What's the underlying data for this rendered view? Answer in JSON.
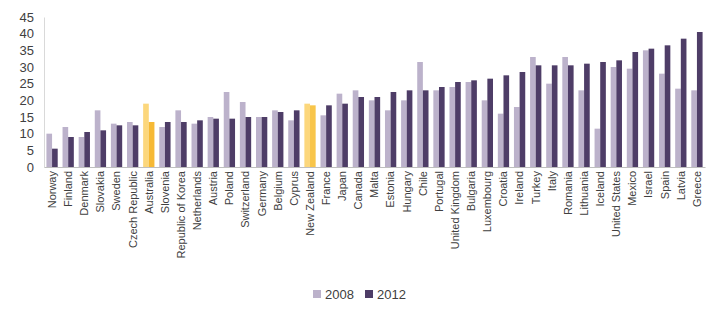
{
  "chart_data": {
    "type": "bar",
    "categories": [
      "Norway",
      "Finland",
      "Denmark",
      "Slovakia",
      "Sweden",
      "Czech Republic",
      "Australia",
      "Slovenia",
      "Republic of Korea",
      "Netherlands",
      "Austria",
      "Poland",
      "Switzerland",
      "Germany",
      "Belgium",
      "Cyprus",
      "New Zealand",
      "France",
      "Japan",
      "Canada",
      "Malta",
      "Estonia",
      "Hungary",
      "Chile",
      "Portugal",
      "United Kingdom",
      "Bulgaria",
      "Luxembourg",
      "Croatia",
      "Ireland",
      "Turkey",
      "Italy",
      "Romania",
      "Lithuania",
      "Iceland",
      "United States",
      "Mexico",
      "Israel",
      "Spain",
      "Latvia",
      "Greece"
    ],
    "series": [
      {
        "name": "2008",
        "color": "#bcb2cb",
        "colors": [
          "#bcb2cb",
          "#bcb2cb",
          "#bcb2cb",
          "#bcb2cb",
          "#bcb2cb",
          "#bcb2cb",
          "#fcd77c",
          "#bcb2cb",
          "#bcb2cb",
          "#bcb2cb",
          "#bcb2cb",
          "#bcb2cb",
          "#bcb2cb",
          "#bcb2cb",
          "#bcb2cb",
          "#bcb2cb",
          "#fcd77c",
          "#bcb2cb",
          "#bcb2cb",
          "#bcb2cb",
          "#bcb2cb",
          "#bcb2cb",
          "#bcb2cb",
          "#bcb2cb",
          "#bcb2cb",
          "#bcb2cb",
          "#bcb2cb",
          "#bcb2cb",
          "#bcb2cb",
          "#bcb2cb",
          "#bcb2cb",
          "#bcb2cb",
          "#bcb2cb",
          "#bcb2cb",
          "#bcb2cb",
          "#bcb2cb",
          "#bcb2cb",
          "#bcb2cb",
          "#bcb2cb",
          "#bcb2cb",
          "#bcb2cb"
        ],
        "values": [
          10,
          12,
          9,
          17,
          13,
          13.5,
          19,
          12,
          17,
          13,
          15,
          22.5,
          19.5,
          15,
          17,
          14,
          19,
          15.5,
          22,
          23,
          20,
          17,
          20,
          31.5,
          23,
          24,
          25.5,
          20,
          16,
          18,
          33,
          25,
          33,
          23,
          11.5,
          30,
          29.5,
          35,
          28,
          23.5,
          23
        ]
      },
      {
        "name": "2012",
        "color": "#4e3d67",
        "colors": [
          "#4e3d67",
          "#4e3d67",
          "#4e3d67",
          "#4e3d67",
          "#4e3d67",
          "#4e3d67",
          "#f6b935",
          "#4e3d67",
          "#4e3d67",
          "#4e3d67",
          "#4e3d67",
          "#4e3d67",
          "#4e3d67",
          "#4e3d67",
          "#4e3d67",
          "#4e3d67",
          "#f8c54a",
          "#4e3d67",
          "#4e3d67",
          "#4e3d67",
          "#4e3d67",
          "#4e3d67",
          "#4e3d67",
          "#4e3d67",
          "#4e3d67",
          "#4e3d67",
          "#4e3d67",
          "#4e3d67",
          "#4e3d67",
          "#4e3d67",
          "#4e3d67",
          "#4e3d67",
          "#4e3d67",
          "#4e3d67",
          "#4e3d67",
          "#4e3d67",
          "#4e3d67",
          "#4e3d67",
          "#4e3d67",
          "#4e3d67",
          "#4e3d67"
        ],
        "values": [
          5.5,
          9,
          10.5,
          11,
          12.5,
          12.5,
          13.5,
          13.5,
          13.5,
          14,
          14.5,
          14.5,
          15,
          15,
          16.5,
          17,
          18.5,
          18.5,
          19,
          21,
          21,
          22.5,
          23,
          23,
          24,
          25.5,
          26,
          26.5,
          27.5,
          28.5,
          30.5,
          30.5,
          30.5,
          31,
          31.5,
          32,
          34.5,
          35.5,
          36.5,
          38.5,
          40.5
        ]
      }
    ],
    "ylim": [
      0,
      45
    ],
    "yticks": [
      0,
      5,
      10,
      15,
      20,
      25,
      30,
      35,
      40,
      45
    ],
    "grid": false,
    "legend": "bottom"
  }
}
